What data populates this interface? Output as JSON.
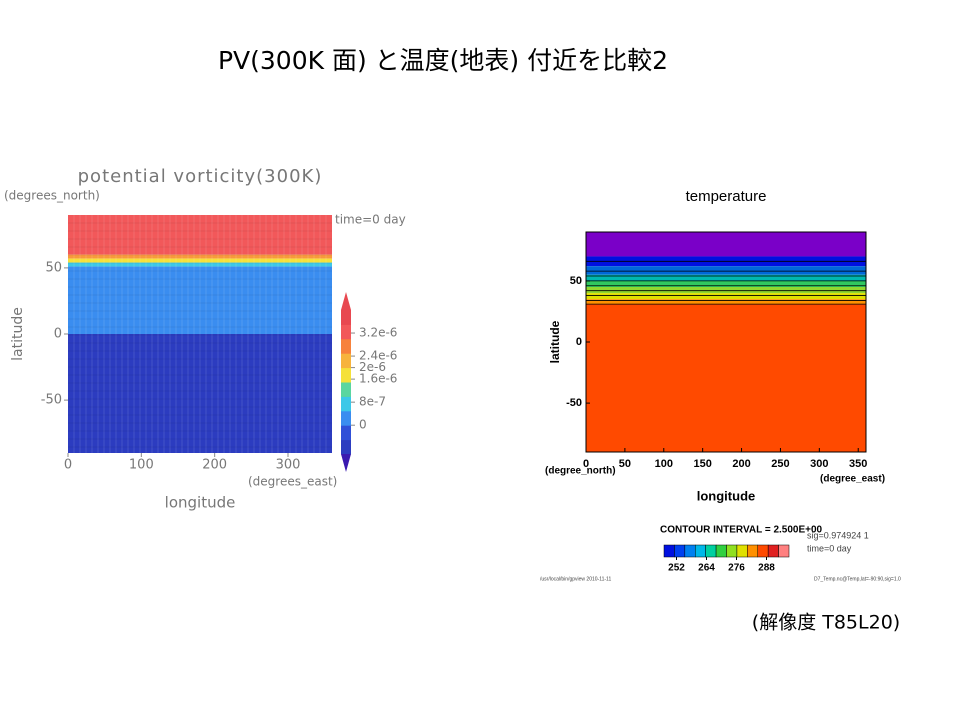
{
  "title": "PV(300K 面) と温度(地表) 付近を比較2",
  "note": "(解像度 T85L20)",
  "chart_data": [
    {
      "type": "heatmap",
      "title": "potential vorticity(300K)",
      "x_label": "longitude",
      "x_unit": "(degrees_east)",
      "y_label": "latitude",
      "y_unit": "(degrees_north)",
      "annotation": "time=0 day",
      "xlim": [
        0,
        360
      ],
      "xticks": [
        0,
        100,
        200,
        300
      ],
      "ylim": [
        -90,
        90
      ],
      "yticks": [
        -50,
        0,
        50
      ],
      "clim": [
        -1e-06,
        4e-06
      ],
      "cticks": [
        {
          "value": 0,
          "label": "0"
        },
        {
          "value": 8e-07,
          "label": "8e-7"
        },
        {
          "value": 1.6e-06,
          "label": "1.6e-6"
        },
        {
          "value": 2e-06,
          "label": "2e-6"
        },
        {
          "value": 2.4e-06,
          "label": "2.4e-6"
        },
        {
          "value": 3.2e-06,
          "label": "3.2e-6"
        }
      ]
    },
    {
      "type": "contour",
      "title": "temperature",
      "x_label": "longitude",
      "x_unit": "(degree_east)",
      "y_unit": "(degree_north)",
      "y_label": "latitude",
      "xlim": [
        0,
        360
      ],
      "xticks": [
        0,
        50,
        100,
        150,
        200,
        250,
        300,
        350
      ],
      "ylim": [
        -90,
        90
      ],
      "yticks": [
        -50,
        0,
        50
      ],
      "clim": [
        247,
        297
      ],
      "cticks": [
        252,
        264,
        276,
        288
      ],
      "contour_interval": "CONTOUR INTERVAL = 2.500E+00",
      "sig": "sig=0.974924 1",
      "annotation": "time=0 day",
      "footer_left": "/usr/local/bin/gpview 2010-11-11",
      "footer_right": "D7_Temp.nc@Temp,lat=-90:90,sig=1.0"
    }
  ]
}
